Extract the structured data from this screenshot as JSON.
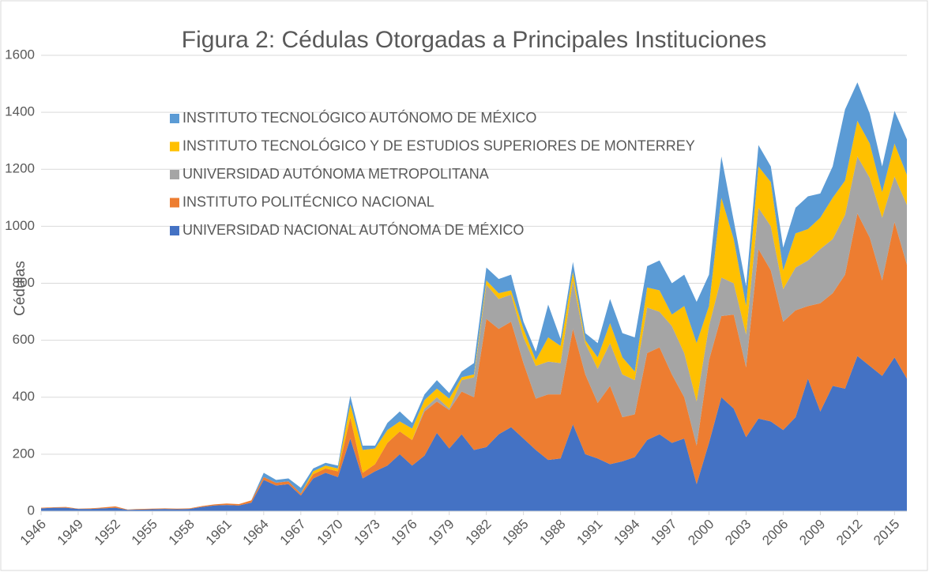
{
  "chart_data": {
    "type": "area",
    "title": "Figura 2: Cédulas Otorgadas a Principales Instituciones",
    "y_label": "Cédulas",
    "x": [
      1946,
      1947,
      1948,
      1949,
      1950,
      1951,
      1952,
      1953,
      1954,
      1955,
      1956,
      1957,
      1958,
      1959,
      1960,
      1961,
      1962,
      1963,
      1964,
      1965,
      1966,
      1967,
      1968,
      1969,
      1970,
      1971,
      1972,
      1973,
      1974,
      1975,
      1976,
      1977,
      1978,
      1979,
      1980,
      1981,
      1982,
      1983,
      1984,
      1985,
      1986,
      1987,
      1988,
      1989,
      1990,
      1991,
      1992,
      1993,
      1994,
      1995,
      1996,
      1997,
      1998,
      1999,
      2000,
      2001,
      2002,
      2003,
      2004,
      2005,
      2006,
      2007,
      2008,
      2009,
      2010,
      2011,
      2012,
      2013,
      2014,
      2015,
      2016
    ],
    "xlim": [
      1946,
      2016
    ],
    "xticks": [
      1946,
      1949,
      1952,
      1955,
      1958,
      1961,
      1964,
      1967,
      1970,
      1973,
      1976,
      1979,
      1982,
      1985,
      1988,
      1991,
      1994,
      1997,
      2000,
      2003,
      2006,
      2009,
      2012,
      2015
    ],
    "ylim": [
      0,
      1600
    ],
    "yticks": [
      0,
      200,
      400,
      600,
      800,
      1000,
      1200,
      1400,
      1600
    ],
    "grid": true,
    "stacked": true,
    "series": [
      {
        "name": "UNIVERSIDAD NACIONAL AUTÓNOMA DE MÉXICO",
        "color": "#4472c4",
        "values": [
          10,
          12,
          12,
          8,
          8,
          10,
          12,
          5,
          6,
          7,
          8,
          7,
          8,
          15,
          20,
          22,
          20,
          30,
          110,
          90,
          95,
          55,
          115,
          135,
          120,
          255,
          115,
          140,
          160,
          200,
          160,
          195,
          275,
          220,
          270,
          215,
          225,
          270,
          295,
          255,
          215,
          180,
          185,
          305,
          200,
          185,
          165,
          175,
          190,
          250,
          270,
          240,
          255,
          95,
          240,
          400,
          360,
          260,
          325,
          315,
          285,
          330,
          465,
          350,
          440,
          430,
          545,
          510,
          475,
          540,
          465
        ]
      },
      {
        "name": "INSTITUTO POLITÉCNICO NACIONAL",
        "color": "#ed7d31",
        "values": [
          2,
          2,
          3,
          1,
          2,
          3,
          5,
          1,
          2,
          2,
          2,
          2,
          2,
          3,
          4,
          5,
          5,
          8,
          10,
          10,
          10,
          7,
          15,
          15,
          20,
          75,
          20,
          25,
          80,
          80,
          90,
          155,
          110,
          135,
          150,
          185,
          450,
          370,
          370,
          265,
          180,
          230,
          225,
          335,
          280,
          195,
          275,
          155,
          150,
          305,
          305,
          240,
          145,
          135,
          290,
          285,
          330,
          245,
          595,
          530,
          380,
          375,
          255,
          380,
          325,
          400,
          500,
          450,
          335,
          475,
          400
        ]
      },
      {
        "name": "UNIVERSIDAD AUTÓNOMA METROPOLITANA",
        "color": "#a5a5a5",
        "values": [
          0,
          0,
          0,
          0,
          0,
          0,
          0,
          0,
          0,
          0,
          0,
          0,
          0,
          0,
          0,
          0,
          0,
          0,
          0,
          0,
          0,
          0,
          0,
          0,
          0,
          0,
          0,
          0,
          0,
          0,
          0,
          10,
          15,
          5,
          40,
          70,
          120,
          105,
          95,
          90,
          115,
          115,
          110,
          170,
          110,
          120,
          150,
          150,
          120,
          160,
          125,
          170,
          155,
          155,
          120,
          135,
          110,
          115,
          145,
          155,
          115,
          150,
          160,
          190,
          190,
          210,
          200,
          210,
          220,
          160,
          210
        ]
      },
      {
        "name": "INSTITUTO TECNOLÓGICO Y DE ESTUDIOS SUPERIORES DE MONTERREY",
        "color": "#ffc000",
        "values": [
          0,
          0,
          0,
          0,
          0,
          0,
          0,
          0,
          0,
          0,
          0,
          0,
          0,
          0,
          0,
          0,
          0,
          0,
          0,
          0,
          0,
          0,
          10,
          10,
          10,
          45,
          80,
          55,
          45,
          35,
          40,
          30,
          30,
          35,
          10,
          10,
          15,
          20,
          15,
          30,
          20,
          85,
          60,
          30,
          10,
          40,
          70,
          60,
          30,
          70,
          75,
          40,
          165,
          205,
          70,
          280,
          155,
          100,
          145,
          155,
          65,
          120,
          110,
          110,
          145,
          120,
          125,
          120,
          90,
          115,
          105
        ]
      },
      {
        "name": "INSTITUTO TECNOLÓGICO AUTÓNOMO DE MÉXICO",
        "color": "#5b9bd5",
        "values": [
          0,
          0,
          0,
          0,
          0,
          0,
          0,
          0,
          0,
          0,
          0,
          0,
          0,
          0,
          0,
          0,
          0,
          0,
          15,
          10,
          10,
          20,
          10,
          10,
          10,
          30,
          15,
          10,
          25,
          35,
          20,
          20,
          30,
          20,
          20,
          40,
          45,
          50,
          55,
          25,
          30,
          115,
          25,
          35,
          25,
          50,
          85,
          85,
          120,
          75,
          105,
          110,
          110,
          145,
          110,
          145,
          65,
          70,
          75,
          55,
          80,
          90,
          115,
          85,
          110,
          250,
          135,
          105,
          90,
          115,
          125
        ]
      }
    ]
  }
}
